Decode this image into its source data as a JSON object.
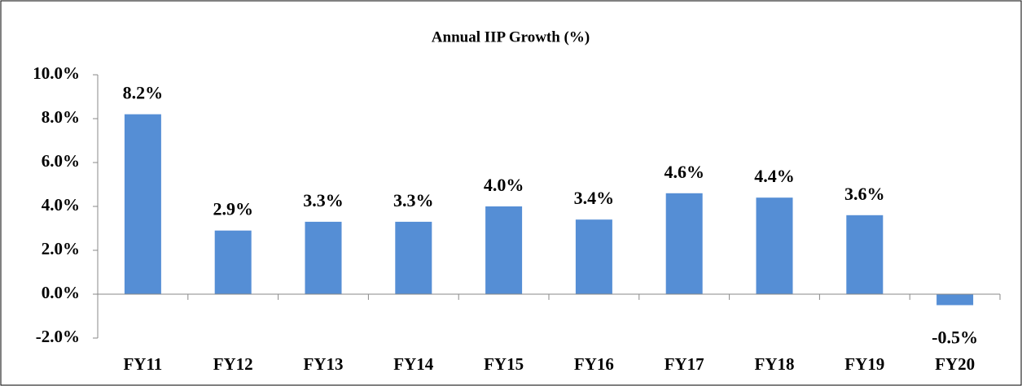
{
  "chart_data": {
    "type": "bar",
    "title": "Annual IIP Growth (%)",
    "categories": [
      "FY11",
      "FY12",
      "FY13",
      "FY14",
      "FY15",
      "FY16",
      "FY17",
      "FY18",
      "FY19",
      "FY20"
    ],
    "values": [
      8.2,
      2.9,
      3.3,
      3.3,
      4.0,
      3.4,
      4.6,
      4.4,
      3.6,
      -0.5
    ],
    "value_labels": [
      "8.2%",
      "2.9%",
      "3.3%",
      "3.3%",
      "4.0%",
      "3.4%",
      "4.6%",
      "4.4%",
      "3.6%",
      "-0.5%"
    ],
    "color": "#558ed5",
    "ylim": [
      -2,
      10
    ],
    "yticks": [
      {
        "value": -2,
        "label": "-2.0%"
      },
      {
        "value": 0,
        "label": "0.0%"
      },
      {
        "value": 2,
        "label": "2.0%"
      },
      {
        "value": 4,
        "label": "4.0%"
      },
      {
        "value": 6,
        "label": "6.0%"
      },
      {
        "value": 8,
        "label": "8.0%"
      },
      {
        "value": 10,
        "label": "10.0%"
      }
    ],
    "grid": false
  }
}
